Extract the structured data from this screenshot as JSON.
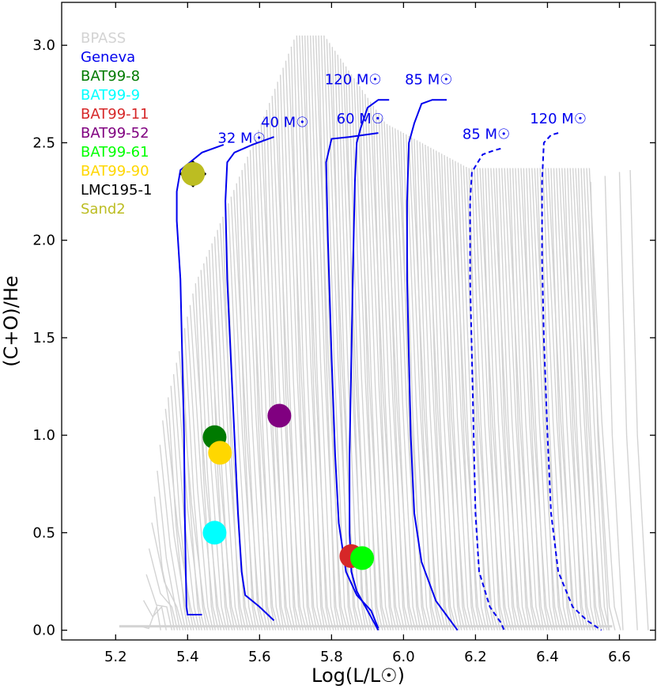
{
  "chart_data": {
    "type": "scatter",
    "xlabel": "Log(L/L☉)",
    "ylabel": "(C+O)/He",
    "xlim": [
      5.05,
      6.7
    ],
    "ylim": [
      -0.05,
      3.22
    ],
    "xticks": [
      "5.2",
      "5.4",
      "5.6",
      "5.8",
      "6.0",
      "6.2",
      "6.4",
      "6.6"
    ],
    "yticks": [
      "0.0",
      "0.5",
      "1.0",
      "1.5",
      "2.0",
      "2.5",
      "3.0"
    ],
    "grid": false,
    "legend_position": "top-left",
    "colors": {
      "bpass": "#d3d3d3",
      "geneva": "#0000ee",
      "axis": "#000000"
    },
    "legend": [
      {
        "label": "BPASS",
        "color": "#d3d3d3"
      },
      {
        "label": "Geneva",
        "color": "#0000ee"
      },
      {
        "label": "BAT99-8",
        "color": "#007a00"
      },
      {
        "label": "BAT99-9",
        "color": "#00ffff"
      },
      {
        "label": "BAT99-11",
        "color": "#d62728"
      },
      {
        "label": "BAT99-52",
        "color": "#800080"
      },
      {
        "label": "BAT99-61",
        "color": "#00ff00"
      },
      {
        "label": "BAT99-90",
        "color": "#ffd700"
      },
      {
        "label": "LMC195-1",
        "color": "#000000"
      },
      {
        "label": "Sand2",
        "color": "#bcbd22"
      }
    ],
    "stars": [
      {
        "name": "BAT99-8",
        "x": 5.475,
        "y": 0.99,
        "color": "#007a00",
        "marker": "circle"
      },
      {
        "name": "BAT99-9",
        "x": 5.475,
        "y": 0.5,
        "color": "#00ffff",
        "marker": "circle"
      },
      {
        "name": "BAT99-11",
        "x": 5.855,
        "y": 0.38,
        "color": "#d62728",
        "marker": "circle"
      },
      {
        "name": "BAT99-52",
        "x": 5.655,
        "y": 1.1,
        "color": "#800080",
        "marker": "circle"
      },
      {
        "name": "BAT99-61",
        "x": 5.885,
        "y": 0.37,
        "color": "#00ff00",
        "marker": "circle"
      },
      {
        "name": "BAT99-90",
        "x": 5.49,
        "y": 0.91,
        "color": "#ffd700",
        "marker": "circle"
      },
      {
        "name": "LMC195-1",
        "x": 5.415,
        "y": 2.34,
        "color": "#000000",
        "marker": "diamond"
      },
      {
        "name": "Sand2",
        "x": 5.415,
        "y": 2.34,
        "color": "#bcbd22",
        "marker": "circle"
      }
    ],
    "geneva_tracks": [
      {
        "label": "32 M☉",
        "style": "solid",
        "label_x": 5.55,
        "label_y": 2.5,
        "points": [
          [
            5.5,
            2.49
          ],
          [
            5.44,
            2.45
          ],
          [
            5.38,
            2.36
          ],
          [
            5.37,
            2.25
          ],
          [
            5.37,
            2.1
          ],
          [
            5.38,
            1.8
          ],
          [
            5.385,
            1.4
          ],
          [
            5.39,
            1.0
          ],
          [
            5.392,
            0.6
          ],
          [
            5.395,
            0.3
          ],
          [
            5.397,
            0.12
          ],
          [
            5.4,
            0.08
          ],
          [
            5.44,
            0.08
          ]
        ]
      },
      {
        "label": "40 M☉",
        "style": "solid",
        "label_x": 5.67,
        "label_y": 2.58,
        "points": [
          [
            5.64,
            2.53
          ],
          [
            5.58,
            2.49
          ],
          [
            5.53,
            2.45
          ],
          [
            5.51,
            2.4
          ],
          [
            5.505,
            2.2
          ],
          [
            5.51,
            1.8
          ],
          [
            5.52,
            1.4
          ],
          [
            5.53,
            1.0
          ],
          [
            5.54,
            0.6
          ],
          [
            5.55,
            0.3
          ],
          [
            5.56,
            0.18
          ],
          [
            5.6,
            0.12
          ],
          [
            5.64,
            0.05
          ]
        ]
      },
      {
        "label": "60 M☉",
        "style": "solid",
        "label_x": 5.88,
        "label_y": 2.6,
        "points": [
          [
            5.93,
            2.55
          ],
          [
            5.85,
            2.53
          ],
          [
            5.8,
            2.52
          ],
          [
            5.785,
            2.4
          ],
          [
            5.79,
            2.0
          ],
          [
            5.8,
            1.4
          ],
          [
            5.81,
            0.9
          ],
          [
            5.82,
            0.55
          ],
          [
            5.84,
            0.3
          ],
          [
            5.87,
            0.18
          ],
          [
            5.91,
            0.1
          ],
          [
            5.93,
            0.01
          ]
        ]
      },
      {
        "label": "120 M☉",
        "style": "solid",
        "label_x": 5.86,
        "label_y": 2.8,
        "points": [
          [
            5.96,
            2.72
          ],
          [
            5.93,
            2.72
          ],
          [
            5.9,
            2.68
          ],
          [
            5.88,
            2.57
          ],
          [
            5.87,
            2.5
          ],
          [
            5.865,
            2.3
          ],
          [
            5.86,
            1.9
          ],
          [
            5.855,
            1.4
          ],
          [
            5.85,
            0.9
          ],
          [
            5.85,
            0.5
          ],
          [
            5.855,
            0.3
          ],
          [
            5.87,
            0.2
          ],
          [
            5.9,
            0.1
          ],
          [
            5.93,
            0.0
          ]
        ]
      },
      {
        "label": "85 M☉",
        "style": "solid",
        "label_x": 6.07,
        "label_y": 2.8,
        "points": [
          [
            6.12,
            2.72
          ],
          [
            6.08,
            2.72
          ],
          [
            6.05,
            2.7
          ],
          [
            6.03,
            2.6
          ],
          [
            6.015,
            2.5
          ],
          [
            6.01,
            2.2
          ],
          [
            6.01,
            1.8
          ],
          [
            6.015,
            1.4
          ],
          [
            6.02,
            1.0
          ],
          [
            6.03,
            0.6
          ],
          [
            6.05,
            0.35
          ],
          [
            6.09,
            0.15
          ],
          [
            6.13,
            0.05
          ],
          [
            6.15,
            0.0
          ]
        ]
      },
      {
        "label": "85 M☉",
        "style": "dashed",
        "label_x": 6.23,
        "label_y": 2.52,
        "points": [
          [
            6.27,
            2.47
          ],
          [
            6.25,
            2.46
          ],
          [
            6.22,
            2.44
          ],
          [
            6.19,
            2.35
          ],
          [
            6.185,
            2.2
          ],
          [
            6.185,
            1.8
          ],
          [
            6.19,
            1.4
          ],
          [
            6.195,
            1.0
          ],
          [
            6.2,
            0.6
          ],
          [
            6.21,
            0.3
          ],
          [
            6.24,
            0.12
          ],
          [
            6.27,
            0.04
          ],
          [
            6.28,
            0.0
          ]
        ]
      },
      {
        "label": "120 M☉",
        "style": "dashed",
        "label_x": 6.43,
        "label_y": 2.6,
        "points": [
          [
            6.43,
            2.55
          ],
          [
            6.41,
            2.54
          ],
          [
            6.39,
            2.5
          ],
          [
            6.385,
            2.3
          ],
          [
            6.385,
            1.9
          ],
          [
            6.39,
            1.5
          ],
          [
            6.4,
            1.0
          ],
          [
            6.41,
            0.6
          ],
          [
            6.43,
            0.3
          ],
          [
            6.47,
            0.12
          ],
          [
            6.51,
            0.05
          ],
          [
            6.55,
            0.0
          ]
        ]
      }
    ]
  }
}
